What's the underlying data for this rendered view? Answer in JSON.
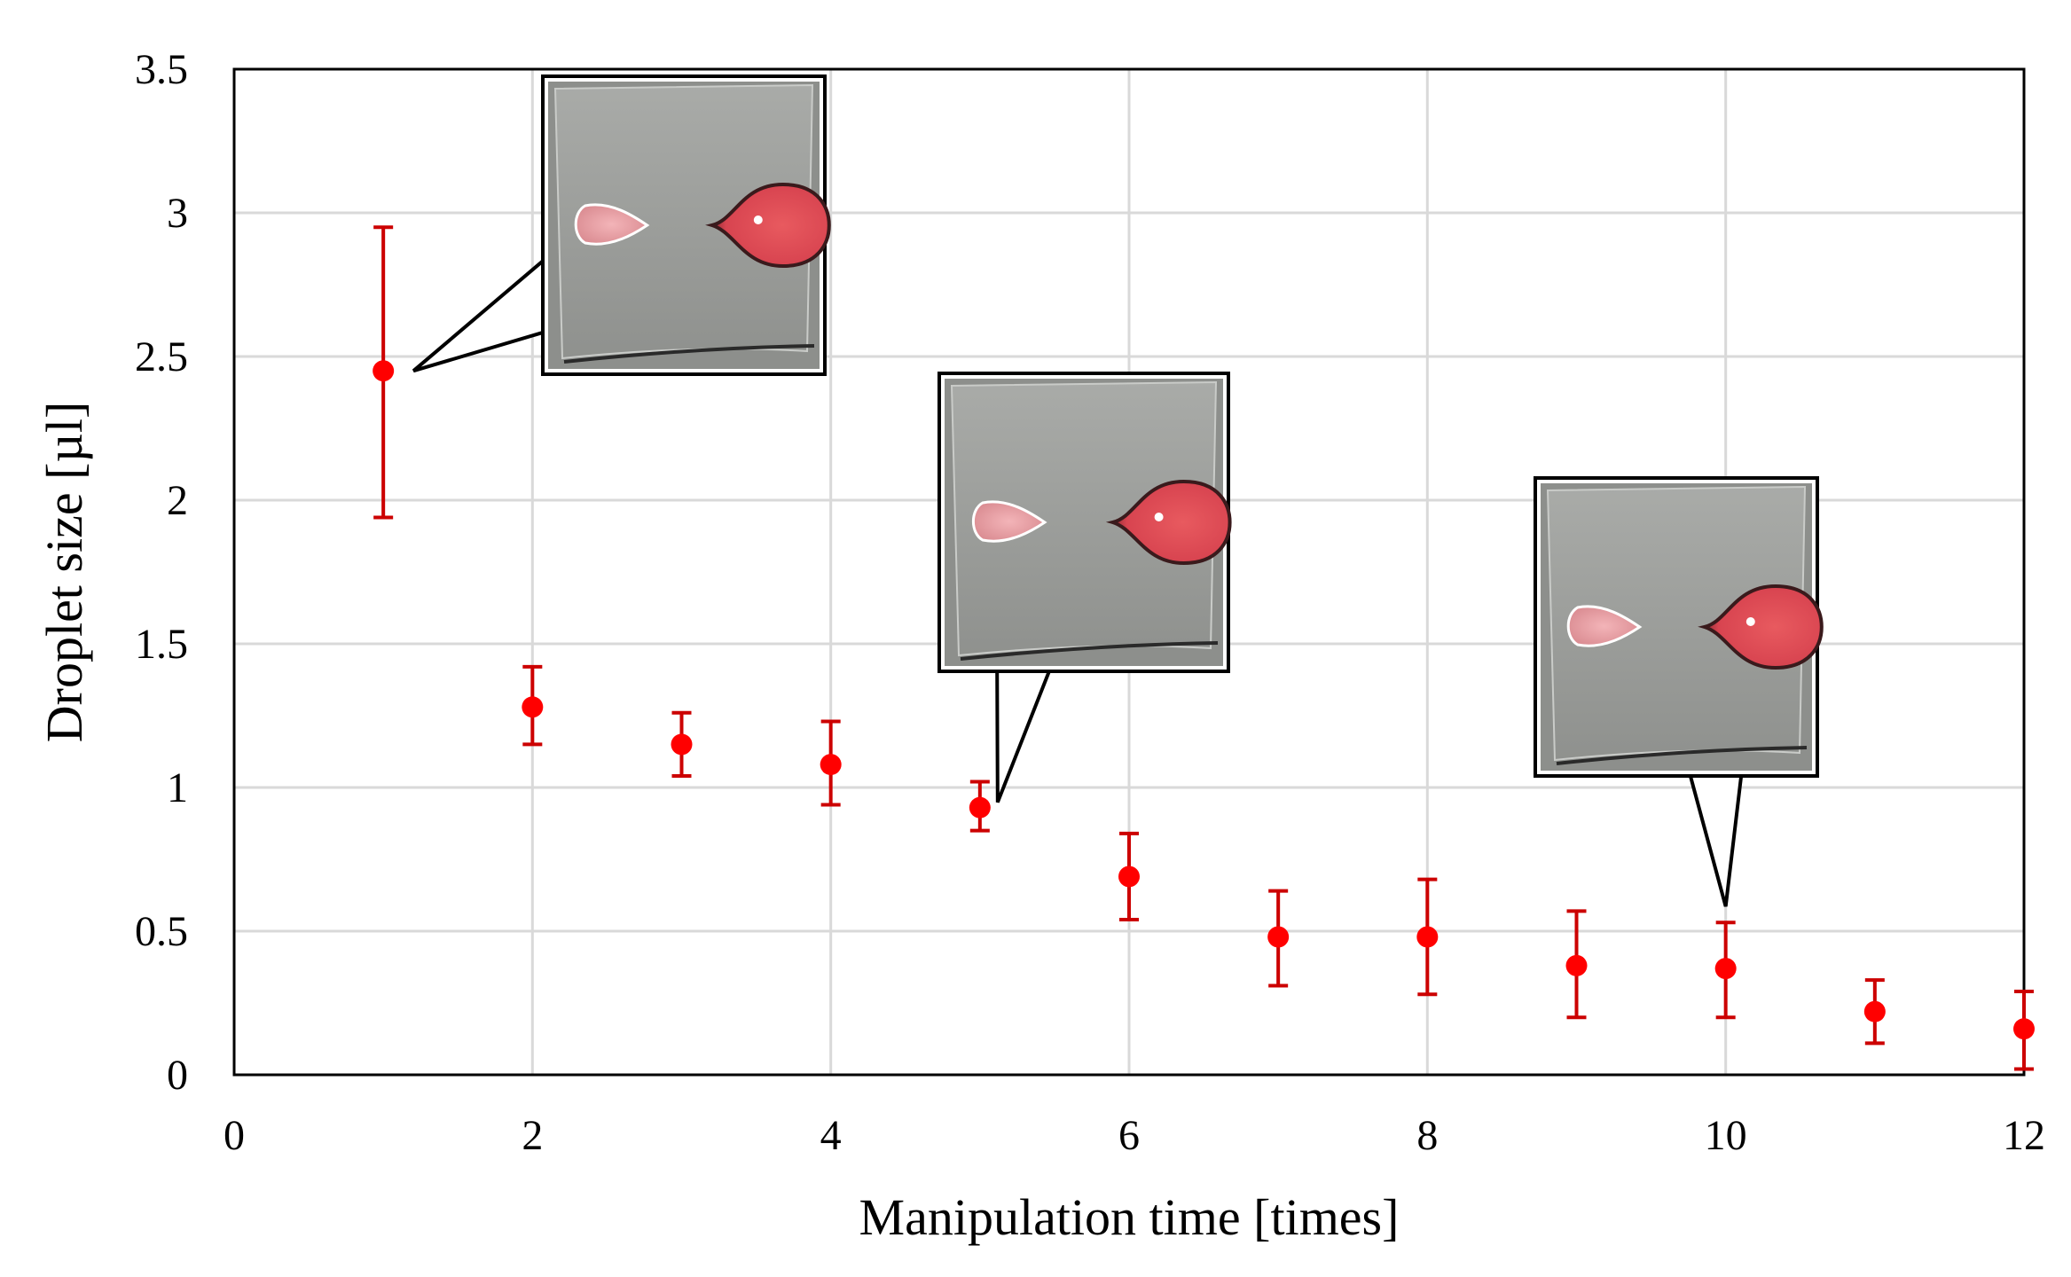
{
  "chart_data": {
    "type": "scatter",
    "title": "",
    "xlabel": "Manipulation time [times]",
    "ylabel": "Droplet size [µl]",
    "xlim": [
      0,
      12
    ],
    "ylim": [
      0,
      3.5
    ],
    "xticks": [
      "0",
      "2",
      "4",
      "6",
      "8",
      "10",
      "12"
    ],
    "yticks": [
      "0",
      "0.5",
      "1",
      "1.5",
      "2",
      "2.5",
      "3",
      "3.5"
    ],
    "grid": true,
    "legend": "none",
    "marker_color": "#ff0000",
    "errorbar_color": "#cc0000",
    "series": [
      {
        "x": [
          1,
          2,
          3,
          4,
          5,
          6,
          7,
          8,
          9,
          10,
          11,
          12
        ],
        "y": [
          2.45,
          1.28,
          1.15,
          1.08,
          0.93,
          0.69,
          0.48,
          0.48,
          0.38,
          0.37,
          0.22,
          0.16
        ],
        "yerr_low": [
          1.94,
          1.15,
          1.04,
          0.94,
          0.85,
          0.54,
          0.31,
          0.28,
          0.2,
          0.2,
          0.11,
          0.02
        ],
        "yerr_high": [
          2.95,
          1.42,
          1.26,
          1.23,
          1.02,
          0.84,
          0.64,
          0.68,
          0.57,
          0.53,
          0.33,
          0.29
        ]
      }
    ],
    "annotations": [
      {
        "kind": "photo-inset",
        "points_to_x": 1,
        "points_to_y": 2.45,
        "subject": "two pink droplets on glass slide, first manipulation"
      },
      {
        "kind": "photo-inset",
        "points_to_x": 5,
        "points_to_y": 0.93,
        "subject": "two pink droplets on glass slide, fifth manipulation"
      },
      {
        "kind": "photo-inset",
        "points_to_x": 10,
        "points_to_y": 0.37,
        "subject": "two pink droplets on glass slide, tenth manipulation"
      }
    ]
  }
}
